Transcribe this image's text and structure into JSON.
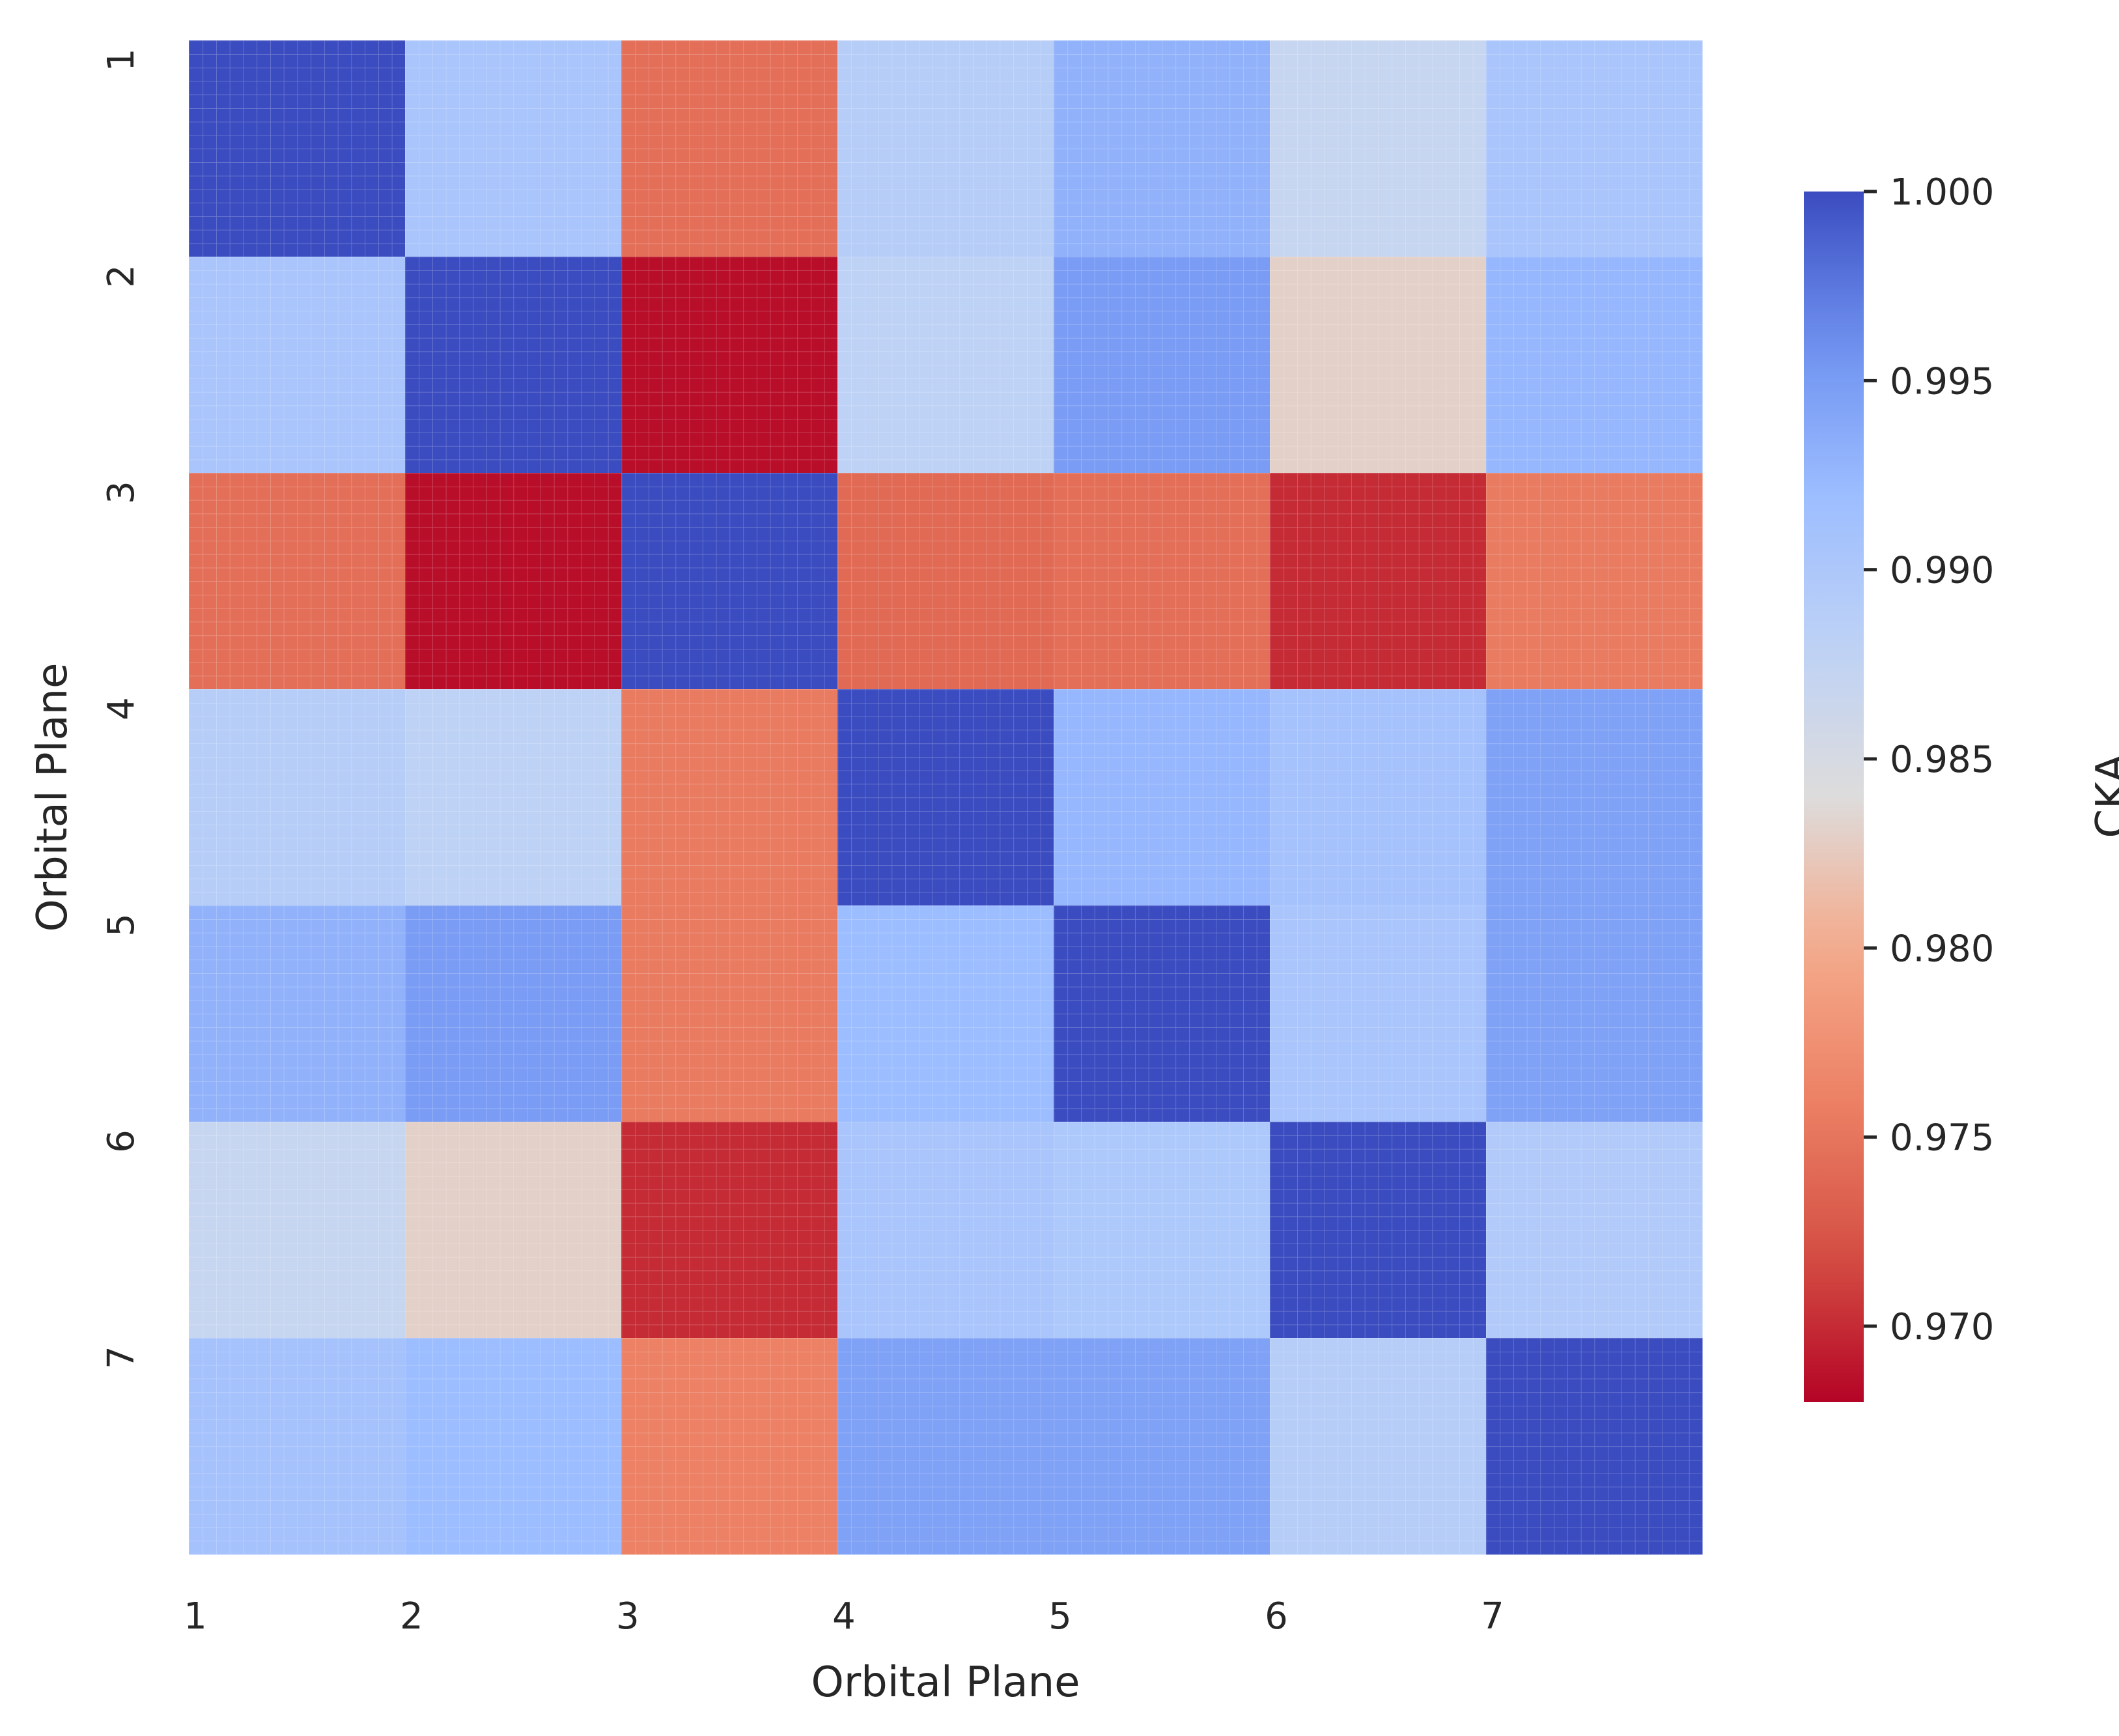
{
  "chart_data": {
    "type": "heatmap",
    "title": "",
    "xlabel": "Orbital Plane",
    "ylabel": "Orbital Plane",
    "x_categories": [
      "1",
      "2",
      "3",
      "4",
      "5",
      "6",
      "7"
    ],
    "y_categories": [
      "1",
      "2",
      "3",
      "4",
      "5",
      "6",
      "7"
    ],
    "values": [
      [
        1.0,
        0.9905,
        0.9745,
        0.989,
        0.993,
        0.987,
        0.9905
      ],
      [
        0.9905,
        1.0,
        0.9685,
        0.988,
        0.995,
        0.983,
        0.9925
      ],
      [
        0.9745,
        0.9685,
        1.0,
        0.974,
        0.9745,
        0.97,
        0.9755
      ],
      [
        0.989,
        0.988,
        0.9755,
        1.0,
        0.9925,
        0.991,
        0.9945
      ],
      [
        0.993,
        0.995,
        0.9755,
        0.992,
        1.0,
        0.9905,
        0.9945
      ],
      [
        0.987,
        0.983,
        0.97,
        0.9905,
        0.99,
        1.0,
        0.9895
      ],
      [
        0.991,
        0.992,
        0.976,
        0.9945,
        0.9945,
        0.989,
        1.0
      ]
    ],
    "colormap": "coolwarm_r",
    "colorbar": {
      "label": "CKA",
      "vmin": 0.968,
      "vmax": 1.0,
      "ticks": [
        "0.970",
        "0.975",
        "0.980",
        "0.985",
        "0.990",
        "0.995",
        "1.000"
      ]
    },
    "colors": {
      "low": "#b40426",
      "mid": "#dddcdc",
      "high": "#3b4cc0"
    },
    "grid": true,
    "legend": "colorbar-right"
  }
}
